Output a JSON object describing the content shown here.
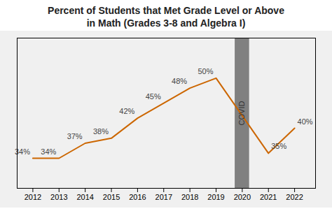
{
  "chart_data": {
    "type": "line",
    "title": "Percent of Students that Met Grade Level or Above\nin Math (Grades 3-8 and Algebra I)",
    "x": [
      2012,
      2013,
      2014,
      2015,
      2016,
      2017,
      2018,
      2019,
      2021,
      2022
    ],
    "values": [
      34,
      34,
      37,
      38,
      42,
      45,
      48,
      50,
      35,
      40
    ],
    "value_labels": [
      "34%",
      "34%",
      "37%",
      "38%",
      "42%",
      "45%",
      "48%",
      "50%",
      "35%",
      "40%"
    ],
    "color": "#CC6600",
    "xlim": [
      2011.4,
      2022.8
    ],
    "xticks": [
      2012,
      2013,
      2014,
      2015,
      2016,
      2017,
      2018,
      2019,
      2020,
      2021,
      2022
    ],
    "ylim": [
      28,
      58
    ],
    "annotations": [
      {
        "text": "COVID",
        "x": 2020,
        "color": "#808080"
      }
    ],
    "data_labels": true,
    "tick_labels": "x",
    "grid": false
  }
}
